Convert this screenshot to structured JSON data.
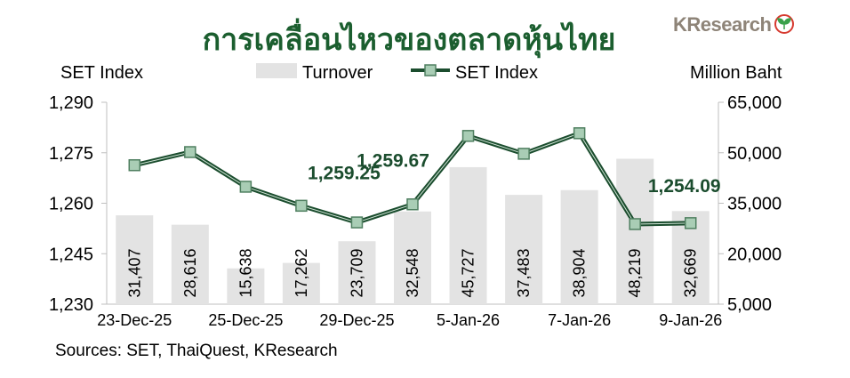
{
  "logo": {
    "text": "KResearch",
    "icon": "kbank-leaf-logo-icon"
  },
  "chart_data": {
    "type": "bar+line",
    "title": "การเคลื่อนไหวของตลาดหุ้นไทย",
    "ylabel_left": "SET Index",
    "ylabel_right": "Million Baht",
    "source": "Sources: SET, ThaiQuest, KResearch",
    "legend": {
      "placement": "top",
      "entries": [
        "Turnover",
        "SET Index"
      ]
    },
    "categories": [
      "23-Dec-25",
      "",
      "25-Dec-25",
      "",
      "29-Dec-25",
      "",
      "5-Jan-26",
      "",
      "7-Jan-26",
      "",
      "9-Jan-26"
    ],
    "ylim_left": [
      1230,
      1290
    ],
    "yticks_left": [
      "1,230",
      "1,245",
      "1,260",
      "1,275",
      "1,290"
    ],
    "ylim_right": [
      5000,
      65000
    ],
    "yticks_right": [
      "5,000",
      "20,000",
      "35,000",
      "50,000",
      "65,000"
    ],
    "grid": false,
    "series": [
      {
        "name": "Turnover",
        "type": "bar",
        "axis": "right",
        "values": [
          31407,
          28616,
          15638,
          17262,
          23709,
          32548,
          45727,
          37483,
          38904,
          48219,
          32669
        ],
        "labels": [
          "31,407",
          "28,616",
          "15,638",
          "17,262",
          "23,709",
          "32,548",
          "45,727",
          "37,483",
          "38,904",
          "48,219",
          "32,669"
        ]
      },
      {
        "name": "SET Index",
        "type": "line",
        "axis": "left",
        "values": [
          1271.3,
          1275.2,
          1264.9,
          1259.25,
          1254.3,
          1259.67,
          1280.0,
          1274.7,
          1280.8,
          1253.8,
          1254.09
        ]
      }
    ],
    "annotations": [
      {
        "index": 3,
        "text": "1,259.25"
      },
      {
        "index": 5,
        "text": "1,259.67"
      },
      {
        "index": 10,
        "text": "1,254.09"
      }
    ],
    "colors": {
      "bar": "#e3e3e3",
      "line": "#1b4d2e",
      "marker": "#a9cdb5",
      "title": "#1b5e2f",
      "annotation": "#1b4d2e"
    }
  }
}
